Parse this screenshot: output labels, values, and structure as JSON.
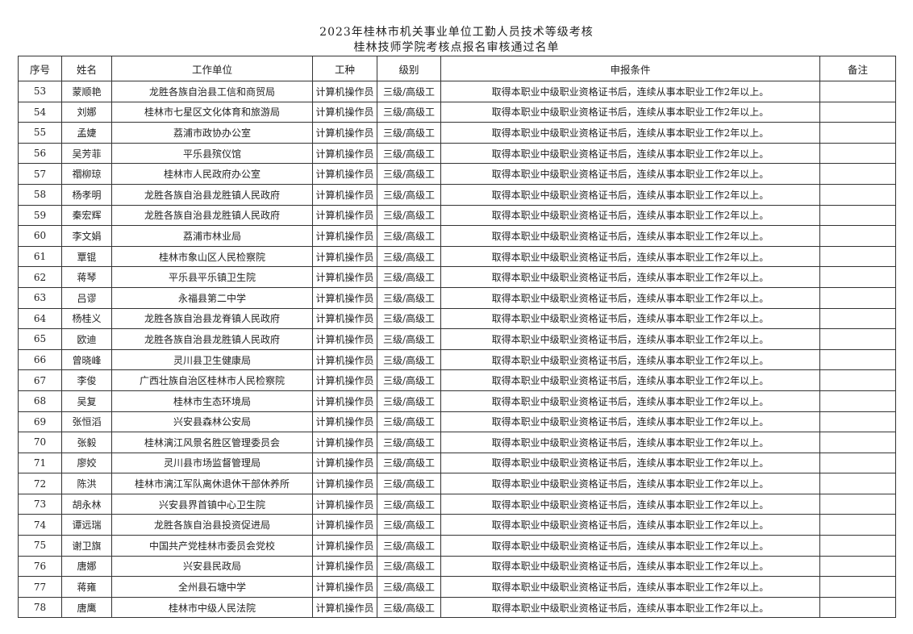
{
  "document": {
    "title_line1": "2023年桂林市机关事业单位工勤人员技术等级考核",
    "title_line2": "桂林技师学院考核点报名审核通过名单"
  },
  "table": {
    "headers": [
      "序号",
      "姓名",
      "工作单位",
      "工种",
      "级别",
      "申报条件",
      "备注"
    ],
    "rows": [
      [
        "53",
        "蒙顺艳",
        "龙胜各族自治县工信和商贸局",
        "计算机操作员",
        "三级/高级工",
        "取得本职业中级职业资格证书后，连续从事本职业工作2年以上。",
        ""
      ],
      [
        "54",
        "刘娜",
        "桂林市七星区文化体育和旅游局",
        "计算机操作员",
        "三级/高级工",
        "取得本职业中级职业资格证书后，连续从事本职业工作2年以上。",
        ""
      ],
      [
        "55",
        "孟婕",
        "荔浦市政协办公室",
        "计算机操作员",
        "三级/高级工",
        "取得本职业中级职业资格证书后，连续从事本职业工作2年以上。",
        ""
      ],
      [
        "56",
        "吴芳菲",
        "平乐县殡仪馆",
        "计算机操作员",
        "三级/高级工",
        "取得本职业中级职业资格证书后，连续从事本职业工作2年以上。",
        ""
      ],
      [
        "57",
        "禤柳琼",
        "桂林市人民政府办公室",
        "计算机操作员",
        "三级/高级工",
        "取得本职业中级职业资格证书后，连续从事本职业工作2年以上。",
        ""
      ],
      [
        "58",
        "杨孝明",
        "龙胜各族自治县龙胜镇人民政府",
        "计算机操作员",
        "三级/高级工",
        "取得本职业中级职业资格证书后，连续从事本职业工作2年以上。",
        ""
      ],
      [
        "59",
        "秦宏辉",
        "龙胜各族自治县龙胜镇人民政府",
        "计算机操作员",
        "三级/高级工",
        "取得本职业中级职业资格证书后，连续从事本职业工作2年以上。",
        ""
      ],
      [
        "60",
        "李文娟",
        "荔浦市林业局",
        "计算机操作员",
        "三级/高级工",
        "取得本职业中级职业资格证书后，连续从事本职业工作2年以上。",
        ""
      ],
      [
        "61",
        "覃锟",
        "桂林市象山区人民检察院",
        "计算机操作员",
        "三级/高级工",
        "取得本职业中级职业资格证书后，连续从事本职业工作2年以上。",
        ""
      ],
      [
        "62",
        "蒋琴",
        "平乐县平乐镇卫生院",
        "计算机操作员",
        "三级/高级工",
        "取得本职业中级职业资格证书后，连续从事本职业工作2年以上。",
        ""
      ],
      [
        "63",
        "吕谬",
        "永福县第二中学",
        "计算机操作员",
        "三级/高级工",
        "取得本职业中级职业资格证书后，连续从事本职业工作2年以上。",
        ""
      ],
      [
        "64",
        "杨桂义",
        "龙胜各族自治县龙脊镇人民政府",
        "计算机操作员",
        "三级/高级工",
        "取得本职业中级职业资格证书后，连续从事本职业工作2年以上。",
        ""
      ],
      [
        "65",
        "欧迪",
        "龙胜各族自治县龙胜镇人民政府",
        "计算机操作员",
        "三级/高级工",
        "取得本职业中级职业资格证书后，连续从事本职业工作2年以上。",
        ""
      ],
      [
        "66",
        "曾晓峰",
        "灵川县卫生健康局",
        "计算机操作员",
        "三级/高级工",
        "取得本职业中级职业资格证书后，连续从事本职业工作2年以上。",
        ""
      ],
      [
        "67",
        "李俊",
        "广西壮族自治区桂林市人民检察院",
        "计算机操作员",
        "三级/高级工",
        "取得本职业中级职业资格证书后，连续从事本职业工作2年以上。",
        ""
      ],
      [
        "68",
        "吴复",
        "桂林市生态环境局",
        "计算机操作员",
        "三级/高级工",
        "取得本职业中级职业资格证书后，连续从事本职业工作2年以上。",
        ""
      ],
      [
        "69",
        "张恒滔",
        "兴安县森林公安局",
        "计算机操作员",
        "三级/高级工",
        "取得本职业中级职业资格证书后，连续从事本职业工作2年以上。",
        ""
      ],
      [
        "70",
        "张毅",
        "桂林漓江风景名胜区管理委员会",
        "计算机操作员",
        "三级/高级工",
        "取得本职业中级职业资格证书后，连续从事本职业工作2年以上。",
        ""
      ],
      [
        "71",
        "廖姣",
        "灵川县市场监督管理局",
        "计算机操作员",
        "三级/高级工",
        "取得本职业中级职业资格证书后，连续从事本职业工作2年以上。",
        ""
      ],
      [
        "72",
        "陈洪",
        "桂林市漓江军队离休退休干部休养所",
        "计算机操作员",
        "三级/高级工",
        "取得本职业中级职业资格证书后，连续从事本职业工作2年以上。",
        ""
      ],
      [
        "73",
        "胡永林",
        "兴安县界首镇中心卫生院",
        "计算机操作员",
        "三级/高级工",
        "取得本职业中级职业资格证书后，连续从事本职业工作2年以上。",
        ""
      ],
      [
        "74",
        "谭远瑞",
        "龙胜各族自治县投资促进局",
        "计算机操作员",
        "三级/高级工",
        "取得本职业中级职业资格证书后，连续从事本职业工作2年以上。",
        ""
      ],
      [
        "75",
        "谢卫旗",
        "中国共产党桂林市委员会党校",
        "计算机操作员",
        "三级/高级工",
        "取得本职业中级职业资格证书后，连续从事本职业工作2年以上。",
        ""
      ],
      [
        "76",
        "唐娜",
        "兴安县民政局",
        "计算机操作员",
        "三级/高级工",
        "取得本职业中级职业资格证书后，连续从事本职业工作2年以上。",
        ""
      ],
      [
        "77",
        "蒋雍",
        "全州县石塘中学",
        "计算机操作员",
        "三级/高级工",
        "取得本职业中级职业资格证书后，连续从事本职业工作2年以上。",
        ""
      ],
      [
        "78",
        "唐鹰",
        "桂林市中级人民法院",
        "计算机操作员",
        "三级/高级工",
        "取得本职业中级职业资格证书后，连续从事本职业工作2年以上。",
        ""
      ]
    ]
  }
}
